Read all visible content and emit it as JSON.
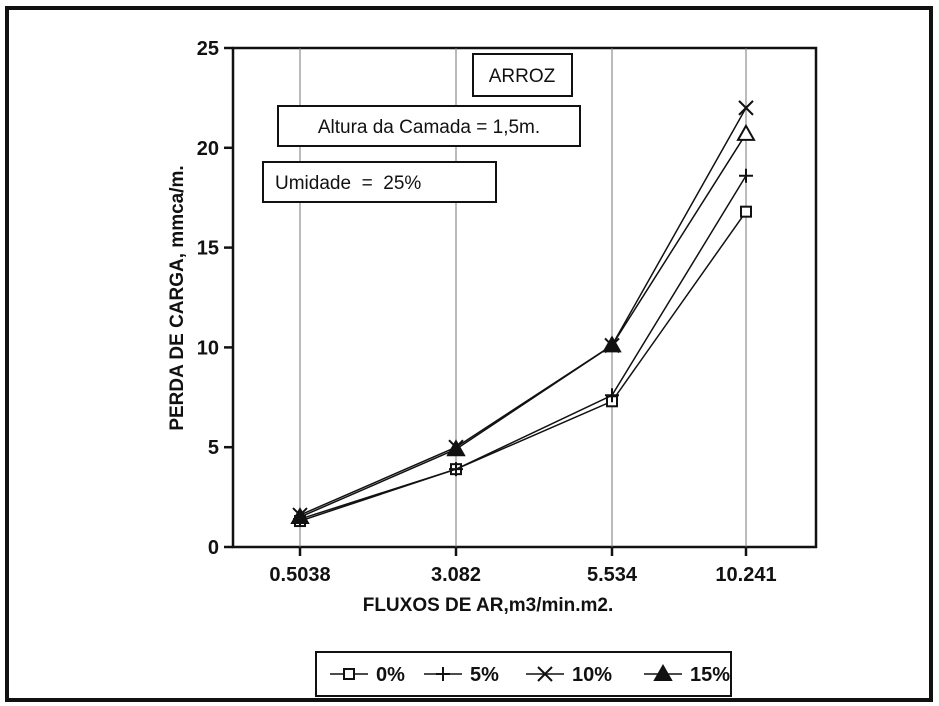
{
  "chart_data": {
    "type": "line",
    "categories": [
      "0.5038",
      "3.082",
      "5.534",
      "10.241"
    ],
    "xlabel": "FLUXOS DE AR,m3/min.m2.",
    "ylabel": "PERDA DE CARGA, mmca/m.",
    "ylim": [
      0,
      25
    ],
    "yticks": [
      "0",
      "5",
      "10",
      "15",
      "20",
      "25"
    ],
    "grid": "vertical",
    "legend_position": "bottom",
    "annotations": {
      "crop": "ARROZ",
      "bed_height": "Altura da Camada = 1,5m.",
      "moisture": "Umidade  =  25%"
    },
    "series": [
      {
        "name": "0%",
        "marker": "square",
        "values": [
          1.3,
          3.9,
          7.3,
          16.8
        ]
      },
      {
        "name": "5%",
        "marker": "plus",
        "values": [
          1.4,
          3.9,
          7.6,
          18.6
        ]
      },
      {
        "name": "10%",
        "marker": "x",
        "values": [
          1.6,
          5.0,
          10.1,
          22.0
        ]
      },
      {
        "name": "15%",
        "marker": "triangle",
        "values": [
          1.5,
          4.9,
          10.1,
          20.7
        ]
      }
    ]
  }
}
